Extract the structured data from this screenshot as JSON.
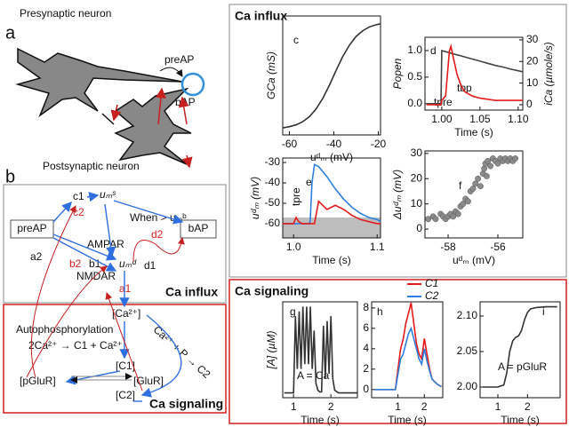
{
  "panel_a": {
    "label": "a",
    "presynaptic": "Presynaptic neuron",
    "preap": "preAP",
    "bap": "bAP",
    "postsynaptic": "Postsynaptic neuron"
  },
  "panel_b": {
    "label": "b",
    "preap": "preAP",
    "bap": "bAP",
    "c1": "c1",
    "ums": "uₘˢ",
    "when": "When > uₘᵇ",
    "c2": "c2",
    "ampar": "AMPAR",
    "a2": "a2",
    "b1": "b1",
    "umd": "uₘᵈ",
    "d1": "d1",
    "d2": "d2",
    "b2": "b2",
    "nmdar": "NMDAR",
    "a1": "a1",
    "ca_influx": "Ca influx",
    "ca": "[Ca²⁺]",
    "reaction2": "Ca²⁺ + P → C2",
    "autophos": "Autophosphorylation",
    "reaction1": "2Ca²⁺ → C1 + Ca²⁺",
    "c1n": "[C1]",
    "pglur": "[pGluR]",
    "glur": "[GluR]",
    "c2n": "[C2]",
    "ca_signaling": "Ca signaling"
  },
  "ca_influx_title": "Ca influx",
  "ca_signaling_title": "Ca signaling",
  "chart_data": [
    {
      "type": "line",
      "label": "c",
      "xlabel": "uᵈₘ (mV)",
      "ylabel": "GCa (mS)",
      "x": [
        -63,
        -60,
        -57,
        -54,
        -51,
        -48,
        -45,
        -42,
        -39,
        -36,
        -33,
        -30,
        -27,
        -24,
        -21,
        -19
      ],
      "series": [
        {
          "color": "#333333",
          "values": [
            0.015,
            0.026,
            0.043,
            0.072,
            0.119,
            0.19,
            0.287,
            0.41,
            0.546,
            0.675,
            0.78,
            0.86,
            0.914,
            0.949,
            0.969,
            0.978
          ]
        }
      ],
      "xlim": [
        -63,
        -19
      ],
      "ylim": [
        -0.05,
        1.05
      ],
      "xticks": [
        -60,
        -40,
        -20
      ]
    },
    {
      "type": "line",
      "label": "d",
      "xlabel": "Time (s)",
      "ylabel": "Popen",
      "y2label": "iCa (µmole/s)",
      "annotations": [
        "tpre",
        "tbp"
      ],
      "x": [
        0.98,
        0.99,
        0.999,
        1.0,
        1.005,
        1.01,
        1.012,
        1.015,
        1.02,
        1.025,
        1.03,
        1.04,
        1.05,
        1.06,
        1.07,
        1.08,
        1.09,
        1.1,
        1.106
      ],
      "series": [
        {
          "color": "#444444",
          "values": [
            0,
            0,
            0,
            1.0,
            0.98,
            0.96,
            0.95,
            0.94,
            0.92,
            0.9,
            0.88,
            0.84,
            0.8,
            0.76,
            0.72,
            0.69,
            0.65,
            0.62,
            0.6
          ]
        },
        {
          "color": "#e41a1a",
          "axis": "y2",
          "values": [
            0,
            0,
            0,
            2,
            4,
            25,
            27,
            22,
            14,
            9,
            6,
            4,
            3,
            2.5,
            2,
            2,
            2,
            2,
            2
          ]
        }
      ],
      "xlim": [
        0.978,
        1.106
      ],
      "ylim": [
        -0.12,
        1.25
      ],
      "y2lim": [
        -2.5,
        31.2
      ],
      "xticks": [
        {
          "value": 1,
          "label": "1.00"
        },
        1.05,
        {
          "value": 1.1,
          "label": "1.10"
        }
      ],
      "yticks": [
        {
          "value": 0,
          "label": "0.0"
        },
        0.5,
        {
          "value": 1,
          "label": "1.0"
        }
      ],
      "y2ticks": [
        0,
        10,
        20,
        30
      ]
    },
    {
      "type": "line",
      "label": "e",
      "xlabel": "Time (s)",
      "ylabel": "uᵈₘ (mV)",
      "annotations": [
        "tpre"
      ],
      "shaded_below": -57,
      "x": [
        0.987,
        1.0,
        1.003,
        1.006,
        1.01,
        1.015,
        1.019,
        1.02,
        1.022,
        1.025,
        1.03,
        1.04,
        1.05,
        1.06,
        1.07,
        1.08,
        1.09,
        1.1,
        1.104
      ],
      "series": [
        {
          "color": "#2f7fe0",
          "values": [
            -60,
            -60,
            -60,
            -60,
            -60,
            -60,
            -60,
            -58,
            -40,
            -31,
            -32,
            -37,
            -43,
            -48,
            -52,
            -55,
            -57,
            -58,
            -59
          ]
        },
        {
          "color": "#e41a1a",
          "values": [
            -60,
            -60,
            -57,
            -59,
            -60,
            -60,
            -60,
            -60,
            -60,
            -60,
            -49,
            -53,
            -51,
            -53,
            -56,
            -58,
            -59,
            -60,
            -60
          ]
        }
      ],
      "xlim": [
        0.987,
        1.104
      ],
      "ylim": [
        -67,
        -27.8
      ],
      "xticks": [
        {
          "value": 1,
          "label": "1.0"
        },
        1.1
      ],
      "yticks": [
        -30,
        -40,
        -50,
        -60
      ]
    },
    {
      "type": "scatter",
      "label": "f",
      "xlabel": "uᵈₘ (mV)",
      "ylabel": "Δuᵈₘ (mV)",
      "x": [
        -58.8,
        -58.6,
        -58.5,
        -58.3,
        -58.2,
        -58.1,
        -58.0,
        -57.9,
        -57.8,
        -57.7,
        -57.6,
        -57.5,
        -57.4,
        -57.3,
        -57.2,
        -57.1,
        -57.0,
        -56.9,
        -56.8,
        -56.7,
        -56.6,
        -56.55,
        -56.5,
        -56.45,
        -56.4,
        -56.3,
        -56.2,
        -56.1,
        -56.0,
        -55.9,
        -55.8,
        -55.7,
        -55.6,
        -55.5,
        -55.4,
        -55.3
      ],
      "series": [
        {
          "color": "#8a8a8a",
          "values": [
            4,
            5,
            4,
            6,
            5,
            4,
            5,
            6,
            5,
            7,
            6,
            9,
            10,
            12,
            11,
            15,
            16,
            18,
            20,
            17,
            22,
            24,
            26,
            21,
            27,
            25,
            28,
            27,
            26,
            28,
            27,
            28,
            27,
            28,
            27,
            28
          ]
        }
      ],
      "xlim": [
        -58.93,
        -55
      ],
      "ylim": [
        -3.5,
        31
      ],
      "xticks": [
        -58,
        -56
      ],
      "yticks": [
        0,
        10,
        20,
        30
      ]
    },
    {
      "type": "line",
      "label": "g",
      "xlabel": "Time (s)",
      "ylabel": "[A] (µM)",
      "annotations": [
        "A = Ca"
      ],
      "x": [
        0.75,
        1.0,
        1.05,
        1.1,
        1.15,
        1.2,
        1.25,
        1.3,
        1.35,
        1.4,
        1.45,
        1.5,
        1.55,
        1.6,
        1.65,
        1.7,
        1.75,
        1.8,
        1.85,
        1.9,
        1.95,
        2.0,
        2.05,
        2.1,
        2.2,
        2.4,
        2.7
      ],
      "series": [
        {
          "color": "#333333",
          "values": [
            0.05,
            0.05,
            0.85,
            0.3,
            0.9,
            0.3,
            0.95,
            0.35,
            0.95,
            0.35,
            0.95,
            0.3,
            0.7,
            0.15,
            0.08,
            0.06,
            0.06,
            0.75,
            0.2,
            0.8,
            0.25,
            0.85,
            0.2,
            0.08,
            0.05,
            0.05,
            0.05
          ]
        }
      ],
      "xlim": [
        0.71,
        2.71
      ],
      "ylim": [
        0,
        1
      ],
      "xticks": [
        1,
        2
      ]
    },
    {
      "type": "line",
      "label": "h",
      "xlabel": "Time (s)",
      "legend": "top-right",
      "x": [
        0.1,
        0.9,
        1.0,
        1.1,
        1.2,
        1.3,
        1.4,
        1.5,
        1.6,
        1.7,
        1.8,
        1.9,
        2.0,
        2.1,
        2.2,
        2.3,
        2.5,
        2.65
      ],
      "series": [
        {
          "name": "C1",
          "color": "#e41a1a",
          "values": [
            0,
            0,
            2,
            4,
            5,
            6.5,
            7.5,
            8.5,
            6.5,
            4.5,
            3.5,
            3,
            5,
            3.5,
            2,
            1,
            0.5,
            0.3
          ]
        },
        {
          "name": "C2",
          "color": "#2f7fe0",
          "values": [
            0,
            0,
            1.5,
            3,
            3.5,
            4.5,
            5.5,
            6,
            5,
            4,
            3,
            2.5,
            4,
            2.8,
            1.8,
            1,
            0.5,
            0.3
          ]
        }
      ],
      "xlim": [
        0,
        2.7
      ],
      "ylim": [
        -0.8,
        8.6
      ],
      "xticks": [
        1,
        2
      ],
      "yticks": [
        0,
        2,
        4,
        6,
        8
      ]
    },
    {
      "type": "line",
      "label": "i",
      "xlabel": "Time (s)",
      "annotations": [
        "A = pGluR"
      ],
      "x": [
        0.5,
        1.0,
        1.2,
        1.3,
        1.4,
        1.5,
        1.6,
        1.7,
        1.8,
        1.9,
        2.0,
        2.1,
        2.3,
        2.6,
        3.0
      ],
      "series": [
        {
          "color": "#333333",
          "values": [
            2.0,
            2.0,
            2.003,
            2.02,
            2.05,
            2.065,
            2.07,
            2.072,
            2.08,
            2.095,
            2.105,
            2.11,
            2.112,
            2.113,
            2.113
          ]
        }
      ],
      "xlim": [
        0.4,
        3.1
      ],
      "ylim": [
        1.985,
        2.12
      ],
      "xticks": [
        1,
        2
      ],
      "yticks": [
        {
          "value": 2,
          "label": "2.00"
        },
        2.05,
        {
          "value": 2.1,
          "label": "2.10"
        }
      ]
    }
  ]
}
